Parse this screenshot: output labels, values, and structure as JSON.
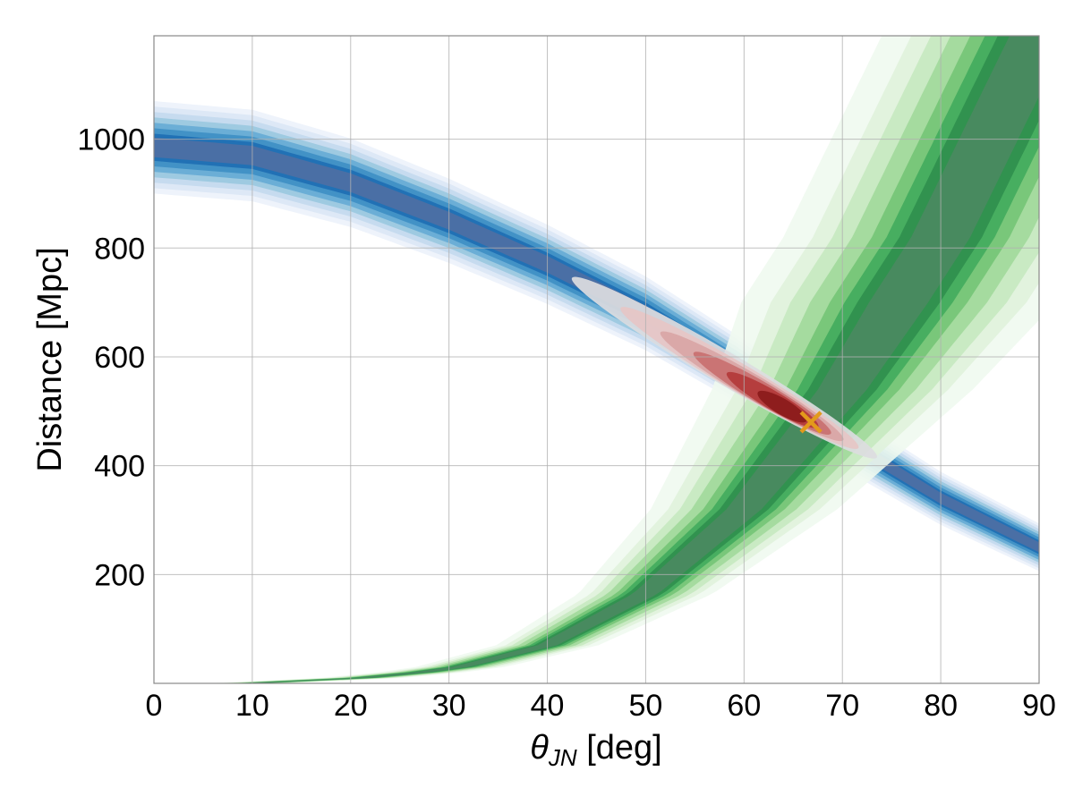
{
  "chart_data": {
    "type": "heatmap",
    "title": "",
    "xlabel": "θ",
    "xlabel_subscript": "JN",
    "xlabel_unit": " [deg]",
    "ylabel": "Distance [Mpc]",
    "xlim": [
      0,
      90
    ],
    "ylim": [
      0,
      1190
    ],
    "x_ticks": [
      0,
      10,
      20,
      30,
      40,
      50,
      60,
      70,
      80,
      90
    ],
    "y_ticks": [
      200,
      400,
      600,
      800,
      1000
    ],
    "grid": true,
    "series": [
      {
        "name": "blue-band",
        "description_kind": "filled contours",
        "center_curve": [
          [
            0,
            985
          ],
          [
            10,
            970
          ],
          [
            20,
            920
          ],
          [
            30,
            850
          ],
          [
            40,
            770
          ],
          [
            50,
            680
          ],
          [
            60,
            570
          ],
          [
            70,
            450
          ],
          [
            80,
            340
          ],
          [
            90,
            250
          ]
        ],
        "colors": [
          "#eef3fb",
          "#dde8f6",
          "#c6dbef",
          "#9ecae1",
          "#6baed6",
          "#4292c6",
          "#2171b5",
          "#4a6fa5"
        ]
      },
      {
        "name": "green-band",
        "description_kind": "filled contours",
        "center_curve": [
          [
            12,
            2
          ],
          [
            20,
            8
          ],
          [
            30,
            25
          ],
          [
            40,
            70
          ],
          [
            50,
            165
          ],
          [
            60,
            320
          ],
          [
            70,
            540
          ],
          [
            80,
            820
          ],
          [
            90,
            1190
          ]
        ],
        "colors": [
          "#f0f9ef",
          "#e0f2dc",
          "#c7e9c0",
          "#a1d99b",
          "#74c476",
          "#41ab5d",
          "#2f8f4e",
          "#4a8a60"
        ]
      },
      {
        "name": "red-posterior",
        "description_kind": "filled contours",
        "peak": [
          65,
          495
        ],
        "extent_x": [
          42.5,
          73.5
        ],
        "extent_y": [
          415,
          745
        ],
        "colors": [
          "#dcdce0",
          "#e6c6c6",
          "#d9a5a5",
          "#c97070",
          "#b33a3a",
          "#8b1a1a"
        ]
      }
    ],
    "markers": [
      {
        "name": "injected-value",
        "symbol": "x",
        "x": 66.8,
        "y": 480,
        "color": "#e39a1b"
      }
    ]
  }
}
